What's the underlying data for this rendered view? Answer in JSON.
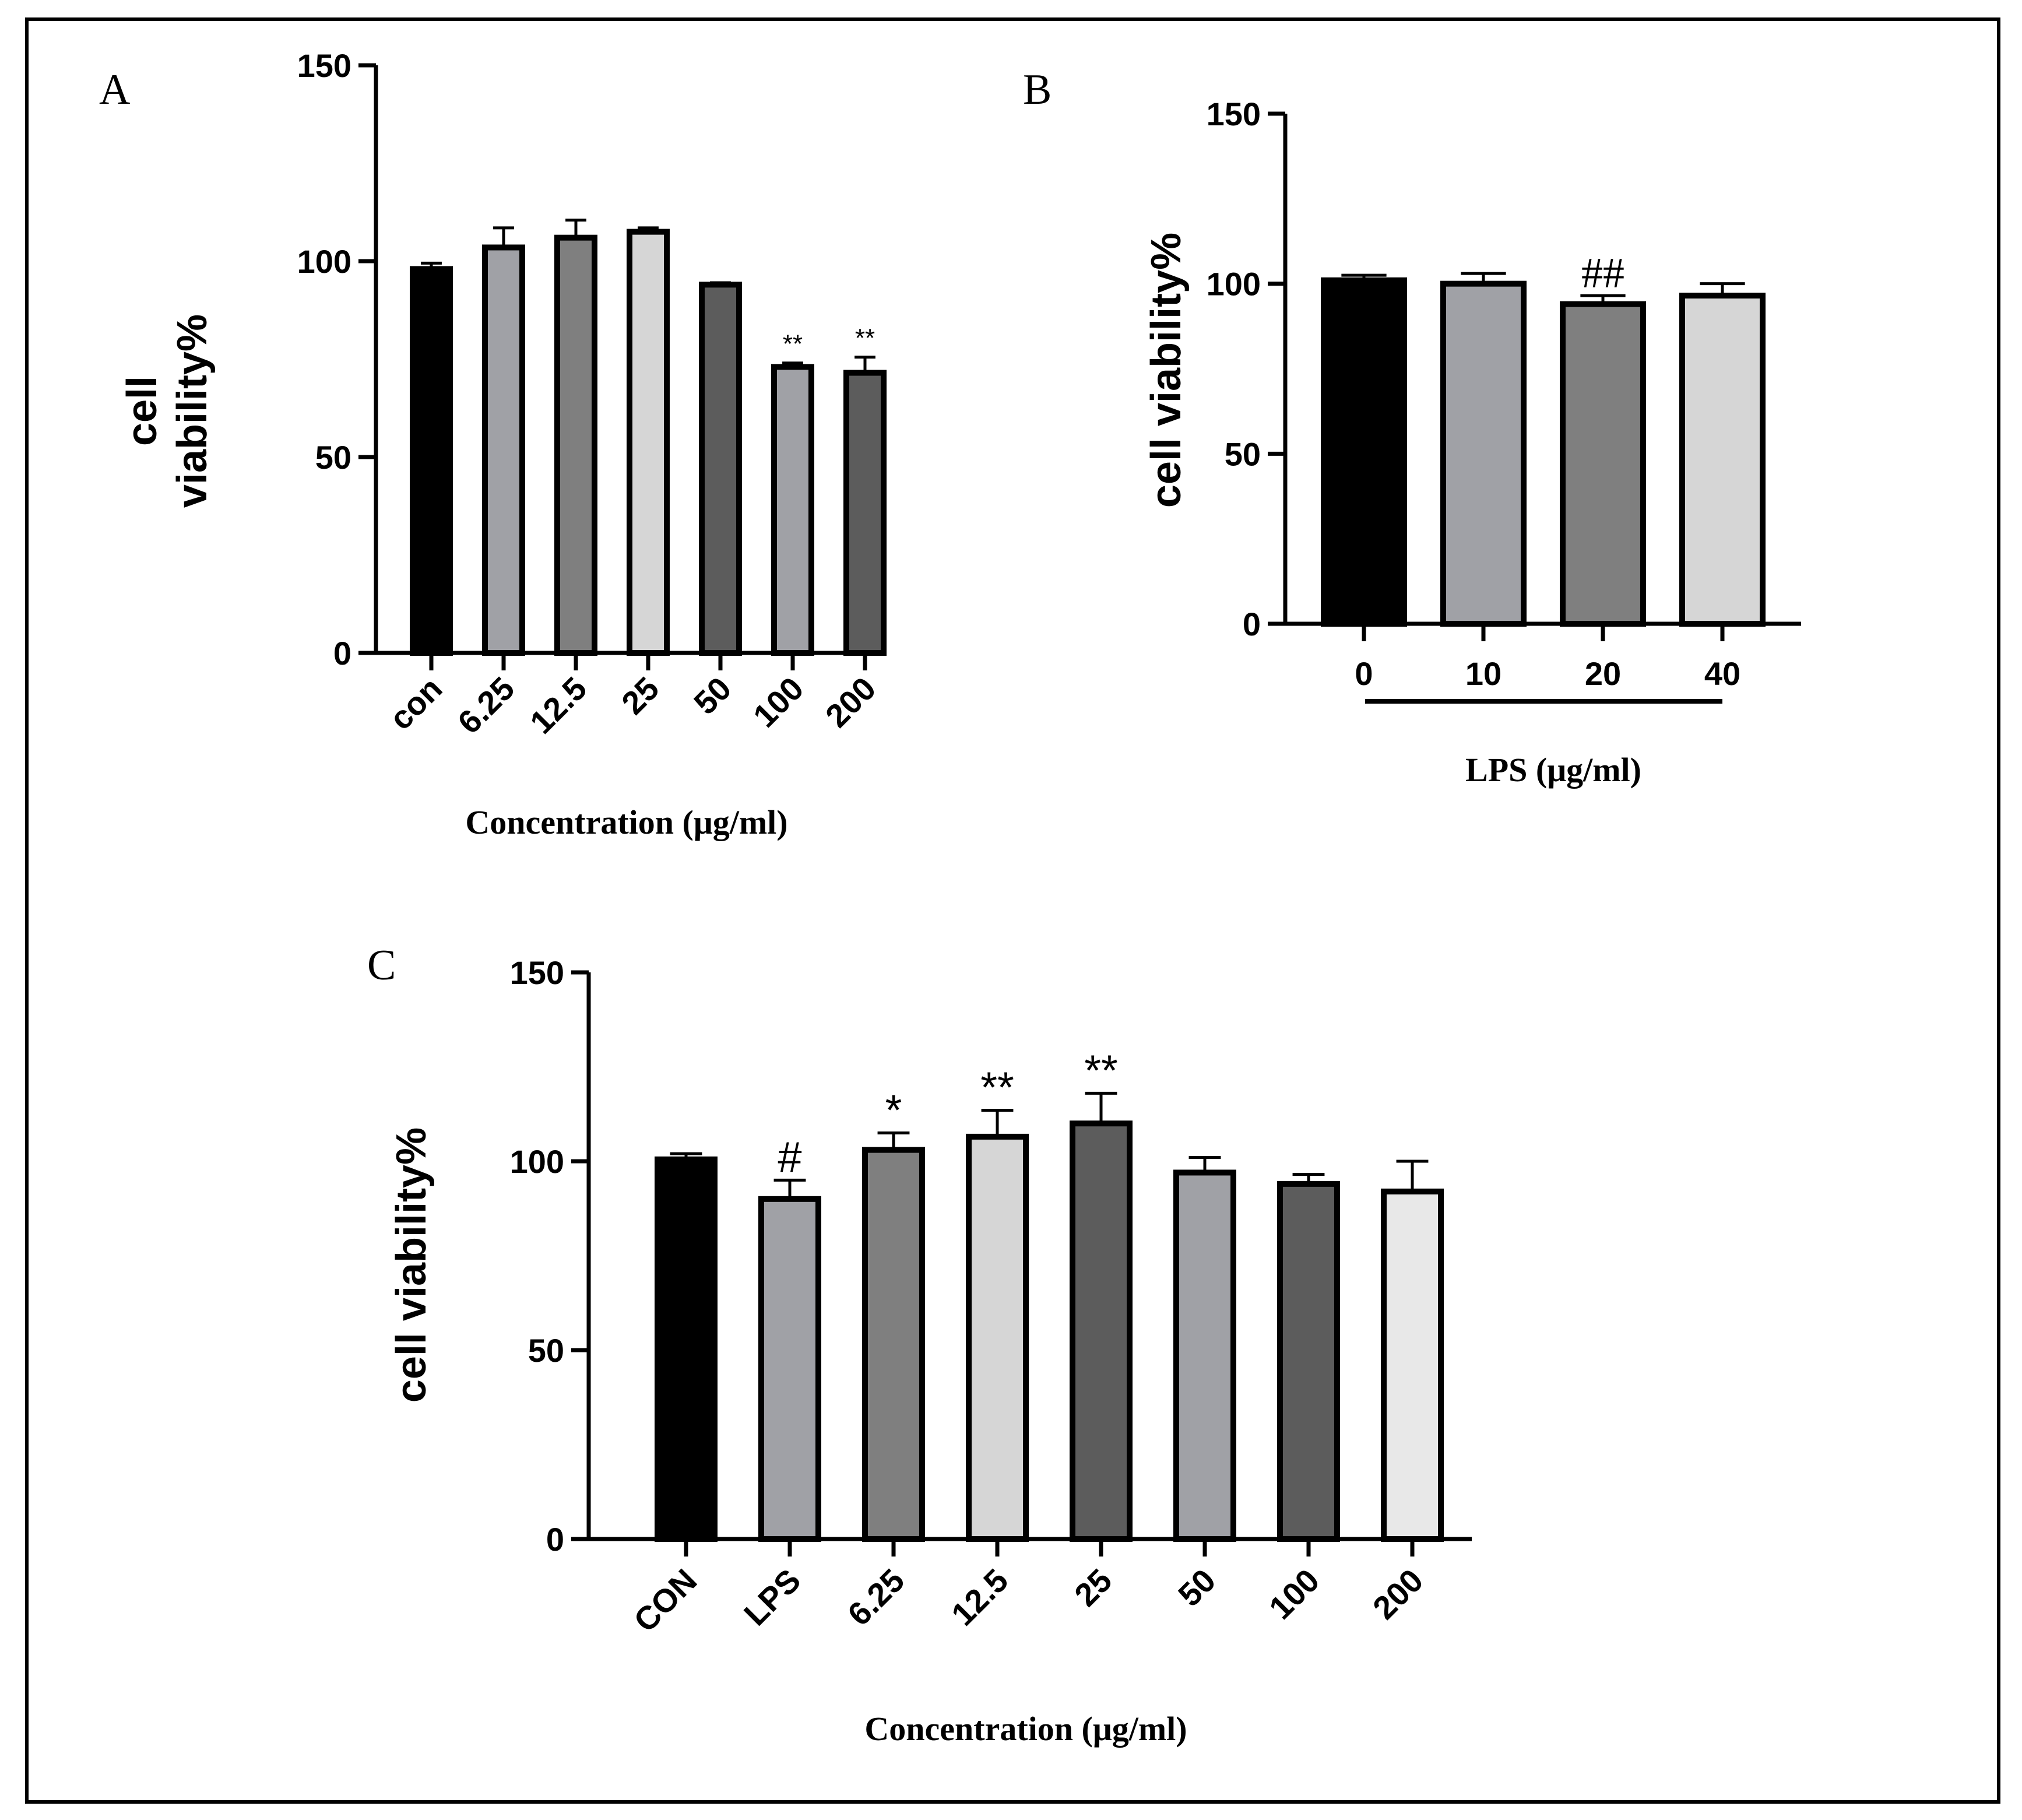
{
  "chart_data": [
    {
      "panel": "A",
      "type": "bar",
      "categories": [
        "con",
        "6.25",
        "12.5",
        "25",
        "50",
        "100",
        "200"
      ],
      "values": [
        98,
        103.5,
        106,
        107.5,
        94,
        73,
        71.5
      ],
      "errors": [
        1.5,
        5,
        4.5,
        1,
        0.5,
        1,
        4
      ],
      "annotations": [
        "",
        "",
        "",
        "",
        "",
        "**",
        "**"
      ],
      "ylabel": "cell viability%",
      "ylabel_lines": [
        "cell",
        "viability%"
      ],
      "xlabel": "Concentration (μg/ml)",
      "ylim": [
        0,
        150
      ],
      "yticks": [
        0,
        50,
        100,
        150
      ],
      "colors": [
        "#000000",
        "#a0a1a6",
        "#7f7f7f",
        "#d6d6d6",
        "#5c5c5c",
        "#a0a1a6",
        "#5c5c5c"
      ]
    },
    {
      "panel": "B",
      "type": "bar",
      "categories": [
        "0",
        "10",
        "20",
        "40"
      ],
      "values": [
        101,
        100,
        94,
        96.5
      ],
      "errors": [
        1.5,
        3,
        2.5,
        3.5
      ],
      "annotations": [
        "",
        "",
        "##",
        ""
      ],
      "ylabel": "cell viability%",
      "xlabel": "LPS (μg/ml)",
      "ylim": [
        0,
        150
      ],
      "yticks": [
        0,
        50,
        100,
        150
      ],
      "colors": [
        "#000000",
        "#a0a1a6",
        "#7f7f7f",
        "#d6d6d6"
      ]
    },
    {
      "panel": "C",
      "type": "bar",
      "categories": [
        "CON",
        "LPS",
        "6.25",
        "12.5",
        "25",
        "50",
        "100",
        "200"
      ],
      "values": [
        100.5,
        90,
        103,
        106.5,
        110,
        97,
        94,
        92
      ],
      "errors": [
        1.5,
        5,
        4.5,
        7,
        8,
        4,
        2.5,
        8
      ],
      "annotations": [
        "",
        "#",
        "*",
        "**",
        "**",
        "",
        "",
        ""
      ],
      "ylabel": "cell viability%",
      "xlabel": "Concentration (μg/ml)",
      "ylim": [
        0,
        150
      ],
      "yticks": [
        0,
        50,
        100,
        150
      ],
      "colors": [
        "#000000",
        "#a0a1a6",
        "#7f7f7f",
        "#d6d6d6",
        "#5c5c5c",
        "#a0a1a6",
        "#5c5c5c",
        "#e8e8e8"
      ]
    }
  ]
}
